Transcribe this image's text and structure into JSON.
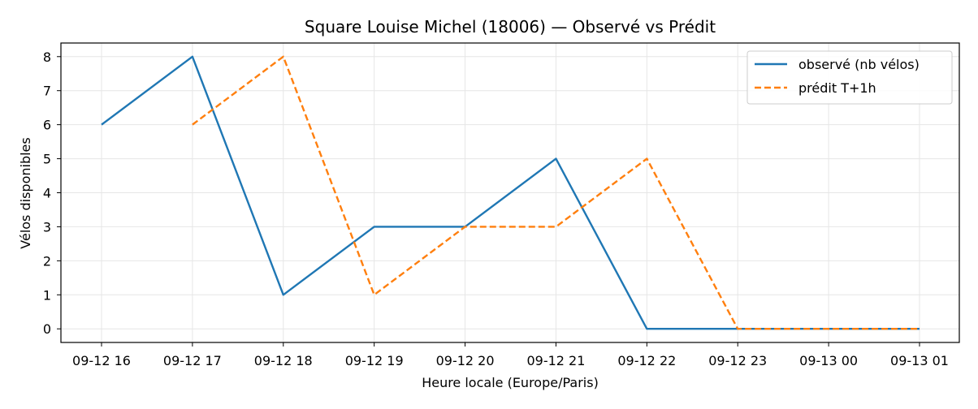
{
  "chart_data": {
    "type": "line",
    "title": "Square Louise Michel (18006) — Observé vs Prédit",
    "xlabel": "Heure locale (Europe/Paris)",
    "ylabel": "Vélos disponibles",
    "categories": [
      "09-12 16",
      "09-12 17",
      "09-12 18",
      "09-12 19",
      "09-12 20",
      "09-12 21",
      "09-12 22",
      "09-12 23",
      "09-13 00",
      "09-13 01"
    ],
    "yticks": [
      0,
      1,
      2,
      3,
      4,
      5,
      6,
      7,
      8
    ],
    "ylim": [
      -0.4,
      8.4
    ],
    "grid": true,
    "legend_position": "top-right",
    "series": [
      {
        "name": "observé (nb vélos)",
        "style": "solid",
        "color": "#1f77b4",
        "values": [
          6,
          8,
          1,
          3,
          3,
          5,
          0,
          0,
          0,
          0
        ]
      },
      {
        "name": "prédit T+1h",
        "style": "dashed",
        "color": "#ff7f0e",
        "values": [
          null,
          6,
          8,
          1,
          3,
          3,
          5,
          0,
          0,
          0
        ]
      }
    ]
  }
}
